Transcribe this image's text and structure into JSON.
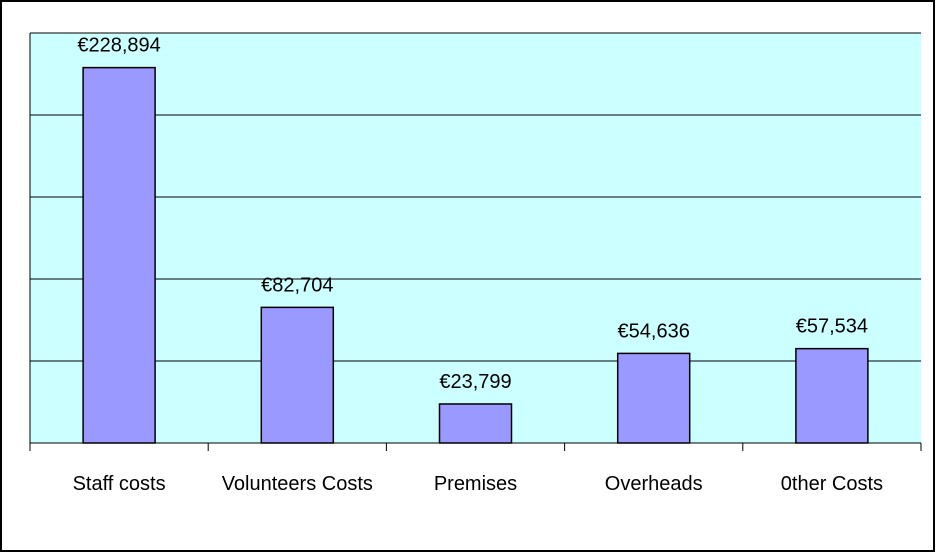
{
  "chart_data": {
    "type": "bar",
    "categories": [
      "Staff costs",
      "Volunteers Costs",
      "Premises",
      "Overheads",
      "0ther Costs"
    ],
    "values": [
      228894,
      82704,
      23799,
      54636,
      57534
    ],
    "value_labels": [
      "€228,894",
      "€82,704",
      "€23,799",
      "€54,636",
      "€57,534"
    ],
    "color": "#9999ff",
    "ylim": [
      0,
      250000
    ],
    "yticks": [
      0,
      50000,
      100000,
      150000,
      200000,
      250000
    ],
    "grid": true
  }
}
